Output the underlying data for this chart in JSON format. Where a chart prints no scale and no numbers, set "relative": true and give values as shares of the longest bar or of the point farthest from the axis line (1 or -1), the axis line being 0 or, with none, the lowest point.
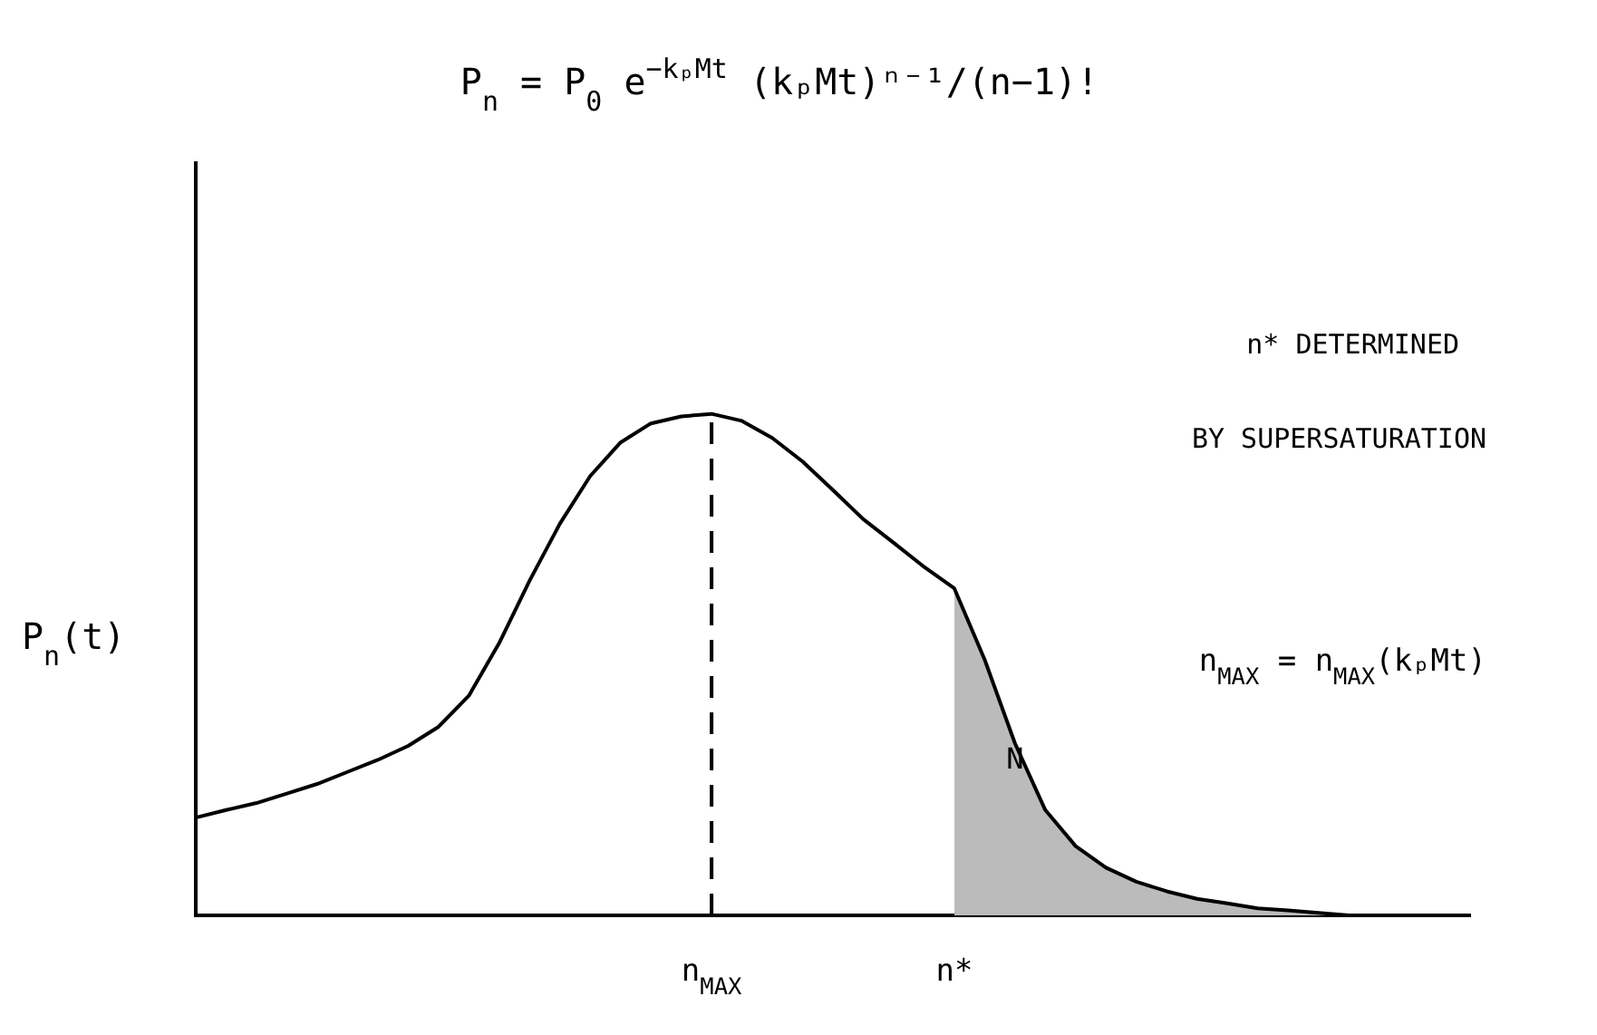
{
  "chart_data": {
    "type": "line",
    "relative": true,
    "title": "P$_{n}$ = P$_{0}$ e$^{−kₚMt}$ (kₚMt)ⁿ⁻¹/(n−1)!",
    "ylabel": "P$_{n}$(t)",
    "categories": [
      null,
      null,
      null,
      null,
      null,
      null,
      null,
      null,
      null,
      null,
      null,
      null,
      null,
      null,
      null,
      null,
      null,
      "n$_{MAX}$",
      null,
      null,
      null,
      null,
      null,
      null,
      null,
      "n*",
      null,
      null,
      null,
      null,
      null,
      null,
      null,
      null,
      null,
      null,
      null,
      null,
      null,
      null,
      null,
      null,
      null
    ],
    "series": [
      {
        "color": "#000000",
        "values": [
          0.195,
          0.21,
          0.224,
          0.243,
          0.262,
          0.286,
          0.31,
          0.338,
          0.376,
          0.438,
          0.543,
          0.667,
          0.781,
          0.876,
          0.943,
          0.981,
          0.995,
          1,
          0.986,
          0.952,
          0.905,
          0.848,
          0.79,
          0.743,
          0.695,
          0.652,
          0.51,
          0.343,
          0.21,
          0.138,
          0.095,
          0.067,
          0.048,
          0.033,
          0.024,
          0.014,
          0.01,
          0.005,
          0,
          null,
          null,
          null,
          null
        ]
      },
      {
        "type": "area",
        "color": "#bbbbbb",
        "values": [
          null,
          null,
          null,
          null,
          null,
          null,
          null,
          null,
          null,
          null,
          null,
          null,
          null,
          null,
          null,
          null,
          null,
          null,
          null,
          null,
          null,
          null,
          null,
          null,
          null,
          0.652,
          0.51,
          0.343,
          0.21,
          0.138,
          0.095,
          0.067,
          0.048,
          0.033,
          0.024,
          0.014,
          0.01,
          0.005,
          0,
          null,
          null,
          null,
          null
        ]
      }
    ],
    "ref_lines": [
      {
        "axis": "x",
        "value": "n$_{MAX}$",
        "color": "#000000",
        "line_style": "dashed"
      }
    ],
    "annotations": [
      "n* DETERMINED",
      "BY SUPERSATURATION",
      "n$_{MAX}$ = n$_{MAX}$(kₚMt)",
      "N"
    ]
  }
}
